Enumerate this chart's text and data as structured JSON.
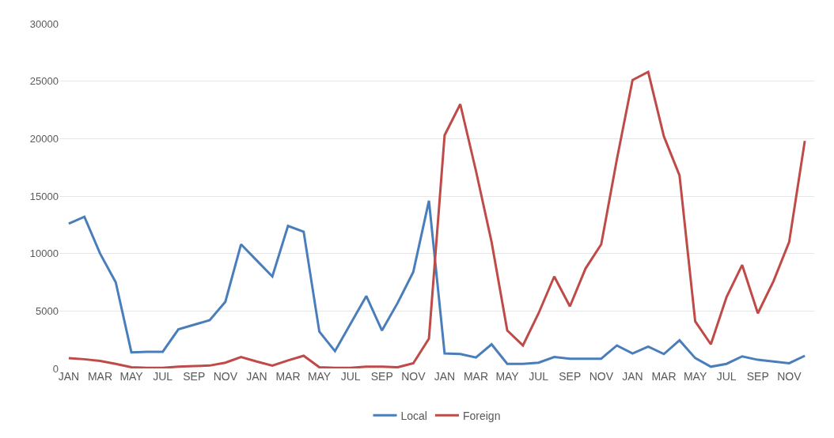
{
  "chart_data": {
    "type": "line",
    "categories": [
      "JAN",
      null,
      "MAR",
      null,
      "MAY",
      null,
      "JUL",
      null,
      "SEP",
      null,
      "NOV",
      null,
      "JAN",
      null,
      "MAR",
      null,
      "MAY",
      null,
      "JUL",
      null,
      "SEP",
      null,
      "NOV",
      null,
      "JAN",
      null,
      "MAR",
      null,
      "MAY",
      null,
      "JUL",
      null,
      "SEP",
      null,
      "NOV",
      null,
      "JAN",
      null,
      "MAR",
      null,
      "MAY",
      null,
      "JUL",
      null,
      "SEP",
      null,
      "NOV",
      null
    ],
    "series": [
      {
        "name": "Local",
        "color": "#4a7ebb",
        "values": [
          12600,
          13200,
          10000,
          7500,
          1400,
          1450,
          1450,
          3400,
          3800,
          4200,
          5800,
          10800,
          9400,
          8000,
          12400,
          11900,
          3200,
          1500,
          3900,
          6300,
          3300,
          5700,
          8400,
          14600,
          1300,
          1250,
          950,
          2100,
          400,
          400,
          500,
          1000,
          850,
          850,
          850,
          2000,
          1300,
          1900,
          1250,
          2450,
          900,
          150,
          400,
          1050,
          750,
          600,
          450,
          1100
        ]
      },
      {
        "name": "Foreign",
        "color": "#be4b48",
        "values": [
          900,
          800,
          650,
          400,
          100,
          50,
          50,
          150,
          200,
          250,
          500,
          1000,
          600,
          250,
          700,
          1100,
          100,
          50,
          50,
          150,
          150,
          100,
          450,
          2600,
          20300,
          23000,
          17200,
          11000,
          3300,
          2000,
          4800,
          8000,
          5400,
          8700,
          10800,
          18200,
          25100,
          25800,
          20200,
          16800,
          4100,
          2100,
          6200,
          9000,
          4800,
          7600,
          11000,
          19800
        ]
      }
    ],
    "ylim": [
      0,
      30000
    ],
    "yticks": [
      0,
      5000,
      10000,
      15000,
      20000,
      25000,
      30000
    ],
    "grid": "y",
    "legend": "bottom",
    "marker": "none",
    "line_style": "solid"
  }
}
